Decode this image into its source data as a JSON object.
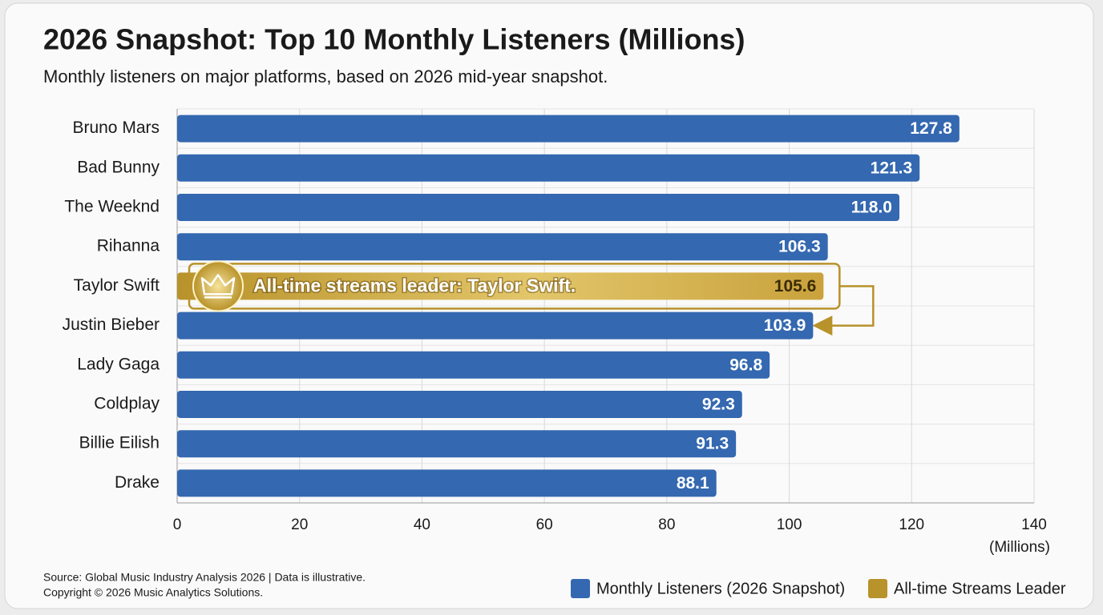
{
  "chart_data": {
    "type": "barh",
    "title": "2026 Snapshot: Top 10 Monthly Listeners (Millions)",
    "subtitle": "Monthly listeners on major platforms, based on 2026 mid-year snapshot.",
    "categories": [
      "Bruno Mars",
      "Bad Bunny",
      "The Weeknd",
      "Rihanna",
      "Taylor Swift",
      "Justin Bieber",
      "Lady Gaga",
      "Coldplay",
      "Billie Eilish",
      "Drake"
    ],
    "series": [
      {
        "name": "Monthly Listeners (2026 Snapshot)",
        "color": "#3468b0",
        "values": [
          127.8,
          121.3,
          118.0,
          106.3,
          105.6,
          103.9,
          96.8,
          92.3,
          91.3,
          88.1
        ],
        "value_labels": [
          "127.8",
          "121.3",
          "118.0",
          "106.3",
          "105.6",
          "103.9",
          "96.8",
          "92.3",
          "91.3",
          "88.1"
        ]
      }
    ],
    "highlight": {
      "name": "All-time Streams Leader",
      "color": "#b8922a",
      "category_index": 4,
      "annotation": "All-time streams leader: Taylor Swift."
    },
    "xlim": [
      0,
      140
    ],
    "xticks": [
      0,
      20,
      40,
      60,
      80,
      100,
      120,
      140
    ],
    "xlabel": "(Millions)",
    "grid": true,
    "legend": "bottom-right",
    "source": "Source: Global Music Industry Analysis 2026 | Data is illustrative.",
    "copyright": "Copyright © 2026 Music Analytics Solutions."
  }
}
